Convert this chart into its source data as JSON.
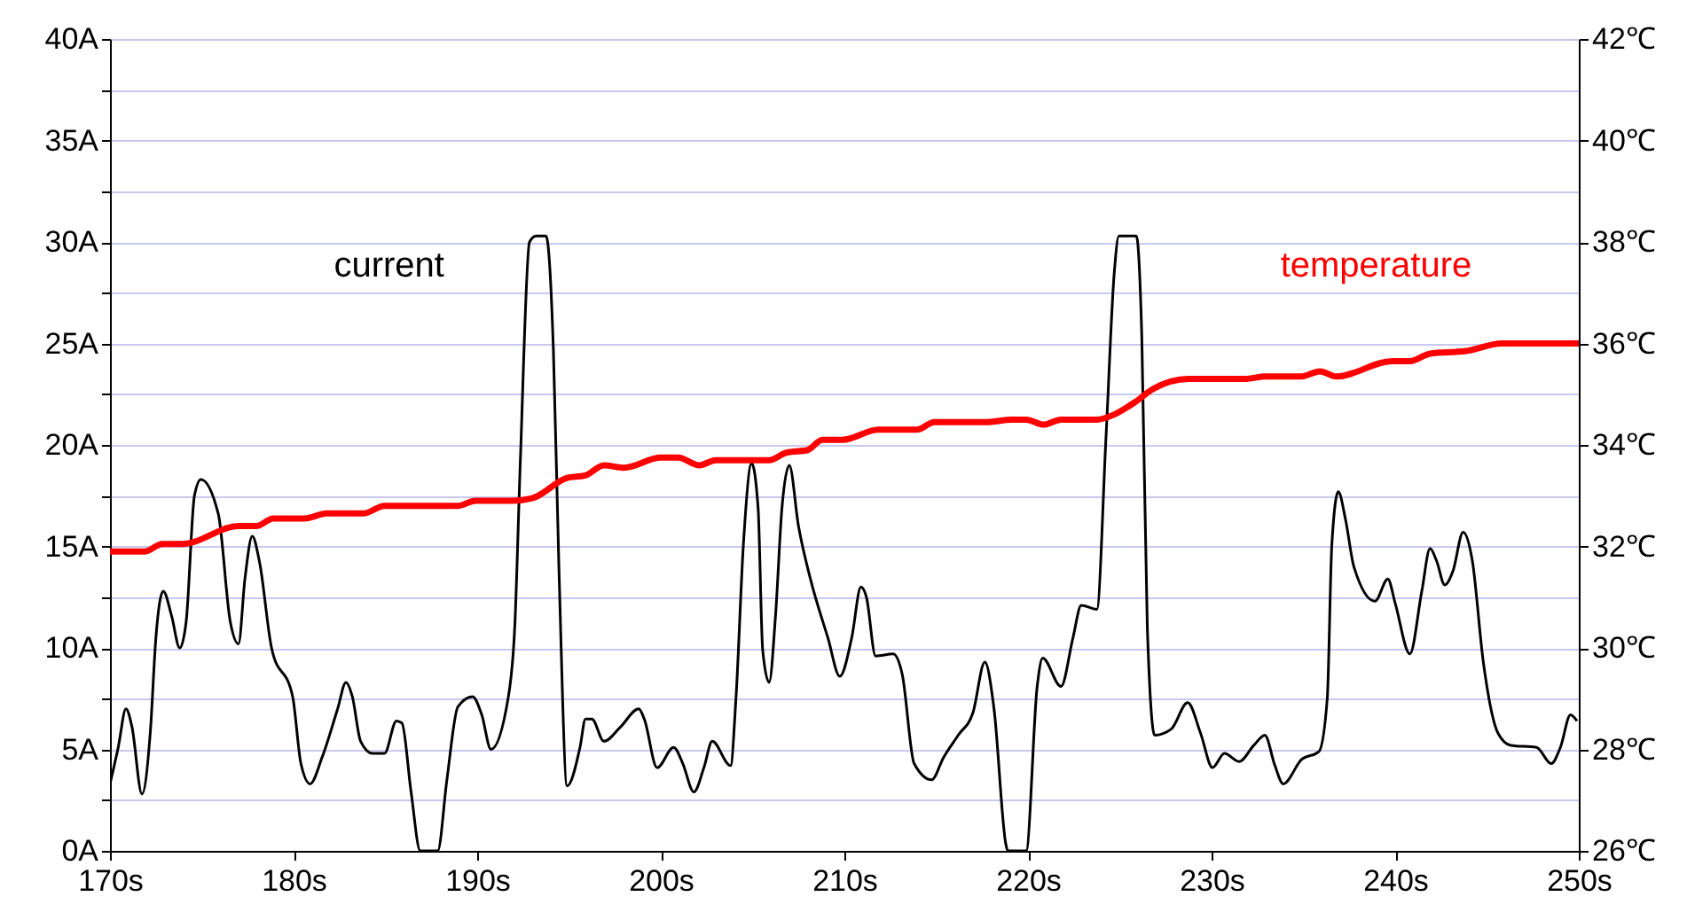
{
  "chart_data": {
    "type": "line",
    "xlim": [
      170,
      250
    ],
    "xticks": [
      {
        "value": 170,
        "label": "170s"
      },
      {
        "value": 180,
        "label": "180s"
      },
      {
        "value": 190,
        "label": "190s"
      },
      {
        "value": 200,
        "label": "200s"
      },
      {
        "value": 210,
        "label": "210s"
      },
      {
        "value": 220,
        "label": "220s"
      },
      {
        "value": 230,
        "label": "230s"
      },
      {
        "value": 240,
        "label": "240s"
      },
      {
        "value": 250,
        "label": "250s"
      }
    ],
    "ylim": [
      0,
      40
    ],
    "yticks": [
      {
        "value": 0,
        "label": "0A"
      },
      {
        "value": 2.5,
        "label": null
      },
      {
        "value": 5,
        "label": "5A"
      },
      {
        "value": 7.5,
        "label": null
      },
      {
        "value": 10,
        "label": "10A"
      },
      {
        "value": 12.5,
        "label": null
      },
      {
        "value": 15,
        "label": "15A"
      },
      {
        "value": 17.5,
        "label": null
      },
      {
        "value": 20,
        "label": "20A"
      },
      {
        "value": 22.5,
        "label": null
      },
      {
        "value": 25,
        "label": "25A"
      },
      {
        "value": 27.5,
        "label": null
      },
      {
        "value": 30,
        "label": "30A"
      },
      {
        "value": 32.5,
        "label": null
      },
      {
        "value": 35,
        "label": "35A"
      },
      {
        "value": 37.5,
        "label": null
      },
      {
        "value": 40,
        "label": "40A"
      }
    ],
    "y2lim": [
      26,
      42
    ],
    "y2ticks": [
      {
        "value": 26,
        "label": "26℃"
      },
      {
        "value": 28,
        "label": "28℃"
      },
      {
        "value": 30,
        "label": "30℃"
      },
      {
        "value": 32,
        "label": "32℃"
      },
      {
        "value": 34,
        "label": "34℃"
      },
      {
        "value": 36,
        "label": "36℃"
      },
      {
        "value": 38,
        "label": "38℃"
      },
      {
        "value": 40,
        "label": "40℃"
      },
      {
        "value": 42,
        "label": "42℃"
      }
    ],
    "grid": "y",
    "marker": "none",
    "line_style": "solid",
    "series": [
      {
        "name": "current",
        "color": "#000000",
        "x": [
          170.0,
          170.45,
          170.87,
          171.2,
          171.74,
          172.2,
          172.5,
          172.9,
          173.35,
          173.8,
          174.15,
          174.6,
          174.95,
          175.9,
          176.55,
          177.0,
          177.35,
          177.75,
          178.15,
          178.8,
          179.95,
          180.4,
          180.9,
          181.55,
          182.4,
          182.85,
          183.2,
          183.65,
          184.3,
          184.95,
          185.6,
          185.9,
          186.4,
          186.9,
          187.85,
          188.35,
          188.95,
          189.75,
          190.25,
          190.75,
          191.7,
          192.05,
          192.35,
          192.85,
          193.2,
          193.75,
          194.15,
          194.45,
          194.9,
          195.6,
          195.9,
          196.25,
          196.9,
          197.8,
          198.8,
          199.1,
          199.8,
          200.7,
          201.2,
          201.8,
          202.35,
          202.8,
          203.8,
          204.1,
          204.5,
          204.95,
          205.3,
          205.55,
          205.9,
          206.25,
          206.6,
          207.0,
          207.5,
          208.15,
          209.1,
          209.75,
          210.4,
          210.9,
          211.2,
          211.7,
          212.65,
          213.15,
          213.8,
          214.75,
          215.4,
          216.2,
          217.0,
          217.65,
          218.15,
          218.8,
          218.9,
          219.9,
          220.5,
          220.8,
          221.8,
          222.45,
          222.9,
          223.75,
          224.25,
          224.7,
          224.95,
          225.9,
          226.2,
          226.5,
          226.9,
          227.8,
          228.7,
          229.4,
          230.05,
          230.7,
          231.5,
          232.3,
          232.9,
          233.45,
          233.9,
          234.9,
          235.85,
          236.3,
          236.55,
          236.9,
          237.3,
          237.75,
          238.9,
          239.6,
          240.0,
          240.8,
          241.45,
          241.9,
          242.25,
          242.7,
          243.15,
          243.7,
          244.2,
          244.8,
          245.6,
          246.3,
          247.7,
          248.5,
          249.0,
          249.55,
          249.9
        ],
        "values": [
          3.3,
          5.1,
          7.0,
          6.1,
          2.8,
          5.9,
          10.5,
          12.8,
          11.6,
          10.0,
          11.3,
          17.5,
          18.3,
          16.6,
          11.3,
          10.2,
          13.4,
          15.5,
          14.2,
          10.0,
          7.6,
          4.3,
          3.3,
          4.6,
          7.0,
          8.3,
          7.6,
          5.4,
          4.8,
          4.8,
          6.4,
          6.3,
          2.9,
          0,
          0,
          3.5,
          7.1,
          7.6,
          6.7,
          5.0,
          7.6,
          11.1,
          19.2,
          30.0,
          30.3,
          30.3,
          24.7,
          14.0,
          3.2,
          5.1,
          6.5,
          6.5,
          5.4,
          6.1,
          7.0,
          6.5,
          4.1,
          5.1,
          4.3,
          2.9,
          4.1,
          5.4,
          4.2,
          7.6,
          15.1,
          19.1,
          16.9,
          9.9,
          8.3,
          11.6,
          16.9,
          19.0,
          16.0,
          13.4,
          10.5,
          8.6,
          10.5,
          13.0,
          12.5,
          9.6,
          9.7,
          8.7,
          4.3,
          3.5,
          4.6,
          5.7,
          6.8,
          9.3,
          7.0,
          0.3,
          0,
          0,
          8.1,
          9.5,
          8.1,
          10.5,
          12.1,
          11.9,
          20.4,
          28.5,
          30.3,
          30.3,
          25.3,
          11.0,
          5.7,
          6.0,
          7.3,
          5.8,
          4.1,
          4.8,
          4.4,
          5.2,
          5.7,
          4.2,
          3.3,
          4.5,
          4.9,
          7.5,
          15.1,
          17.7,
          16.3,
          14.0,
          12.3,
          13.4,
          12.2,
          9.7,
          12.8,
          14.9,
          14.3,
          13.1,
          13.8,
          15.7,
          14.3,
          9.3,
          5.8,
          5.2,
          5.1,
          4.3,
          5.1,
          6.7,
          6.4
        ]
      },
      {
        "name": "temperature",
        "color": "#ff0000",
        "axis": "y2",
        "x": [
          170.0,
          171.9,
          172.85,
          173.95,
          177.0,
          177.95,
          178.9,
          180.6,
          181.8,
          183.8,
          184.95,
          188.95,
          189.9,
          191.9,
          193.0,
          194.9,
          195.9,
          196.9,
          198.0,
          200.0,
          200.95,
          202.1,
          203.0,
          205.9,
          206.85,
          208.0,
          208.8,
          209.9,
          211.85,
          213.95,
          214.9,
          217.8,
          219.1,
          219.9,
          220.85,
          221.8,
          223.75,
          224.7,
          225.85,
          226.8,
          228.75,
          231.8,
          232.95,
          234.9,
          235.9,
          236.8,
          239.85,
          240.8,
          241.9,
          243.85,
          245.8,
          250.0
        ],
        "values": [
          31.9,
          31.9,
          32.05,
          32.05,
          32.4,
          32.4,
          32.55,
          32.55,
          32.65,
          32.65,
          32.8,
          32.8,
          32.9,
          32.9,
          32.95,
          33.35,
          33.4,
          33.6,
          33.55,
          33.75,
          33.75,
          33.6,
          33.7,
          33.7,
          33.85,
          33.9,
          34.1,
          34.1,
          34.3,
          34.3,
          34.45,
          34.45,
          34.5,
          34.5,
          34.4,
          34.5,
          34.5,
          34.6,
          34.85,
          35.1,
          35.3,
          35.3,
          35.35,
          35.35,
          35.45,
          35.35,
          35.65,
          35.65,
          35.8,
          35.85,
          36.0,
          36.0
        ]
      }
    ]
  }
}
